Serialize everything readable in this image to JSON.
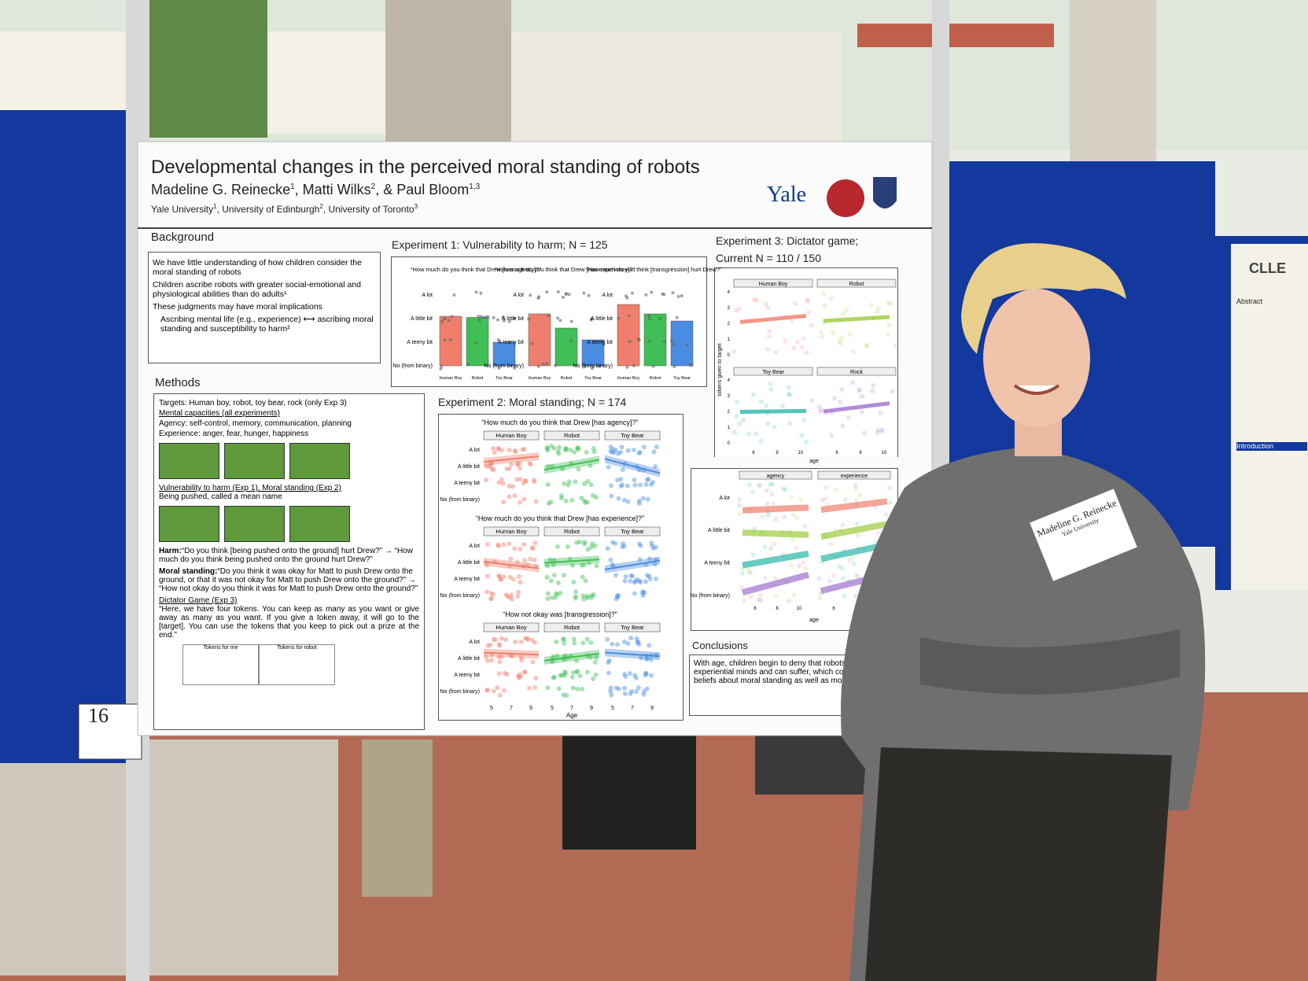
{
  "poster": {
    "title": "Developmental changes in the perceived moral standing of robots",
    "authors": [
      {
        "name": "Madeline G. Reinecke",
        "sup": "1"
      },
      {
        "name": ", Matti Wilks",
        "sup": "2"
      },
      {
        "name": ", & Paul Bloom",
        "sup": "1,3"
      }
    ],
    "affiliations": [
      {
        "name": "Yale University",
        "sup": "1"
      },
      {
        "name": ", University of Edinburgh",
        "sup": "2"
      },
      {
        "name": ", University of Toronto",
        "sup": "3"
      }
    ],
    "logo": "Yale",
    "background": {
      "heading": "Background",
      "items": [
        "We have little understanding of how children consider the moral standing of robots",
        "Children ascribe robots with greater social-emotional and physiological abilities than do adults¹",
        "These judgments may have moral implications",
        "Ascribing mental life (e.g., experience) ⟷ ascribing moral standing and susceptibility to harm²"
      ]
    },
    "methods": {
      "heading": "Methods",
      "lines": [
        "Targets: Human boy, robot, toy bear, rock (only Exp 3)",
        "Mental capacities (all experiments)",
        "Agency: self-control, memory, communication, planning",
        "Experience: anger, fear, hunger, happiness"
      ],
      "sub": "Vulnerability to harm (Exp 1), Moral standing (Exp 2)",
      "sub_line": "Being pushed, called a mean name",
      "harm_label": "Harm:",
      "harm": "“Do you think [being pushed onto the ground] hurt Drew?” → “How much do you think being pushed onto the ground hurt Drew?”",
      "moral_label": "Moral standing:",
      "moral": "“Do you think it was okay for Matt to push Drew onto the ground, or that it was not okay for Matt to push Drew onto the ground?” → “How not okay do you think it was for Matt to push Drew onto the ground?”",
      "dictator": "Dictator Game (Exp 3)",
      "dictator_text": "“Here, we have four tokens. You can keep as many as you want or give away as many as you want. If you give a token away, it will go to the [target]. You can use the tokens that you keep to pick out a prize at the end.”",
      "table": [
        "Tokens for me",
        "Tokens for robot"
      ]
    },
    "levels": [
      "A lot",
      "A little bit",
      "A teeny bit",
      "No (from binary)"
    ],
    "groups": [
      "Human Boy",
      "Robot",
      "Toy Bear"
    ],
    "colors": [
      "#ef7f6c",
      "#3fbf55",
      "#4a8de0"
    ],
    "exp1": {
      "heading": "Experiment 1: Vulnerability to harm; N = 125",
      "ylim": [
        0,
        3
      ],
      "panels": [
        {
          "question": "“How much do you think that Drew [has agency]?”",
          "values": [
            2.1,
            2.05,
            1.0
          ]
        },
        {
          "question": "“How much do you think that Drew [has experience]?”",
          "values": [
            2.2,
            1.6,
            1.1
          ]
        },
        {
          "question": "“How much do you think [transgression] hurt Drew?”",
          "values": [
            2.6,
            2.2,
            1.9
          ]
        }
      ]
    },
    "exp2": {
      "heading": "Experiment 2: Moral standing; N = 174",
      "questions": [
        "“How much do you think that Drew [has agency]?”",
        "“How much do you think that Drew [has experience]?”",
        "“How not okay was [transgression]?”"
      ],
      "xticks": [
        5,
        7,
        9
      ],
      "xlabel": "Age"
    },
    "exp3": {
      "heading": "Experiment 3: Dictator game;",
      "current": "Current N = 110 / 150",
      "facets": [
        "Human Boy",
        "Robot",
        "Toy Bear",
        "Rock"
      ],
      "ylabel": "tokens given to target",
      "yticks": [
        0,
        1,
        2,
        3,
        4
      ],
      "xticks": [
        6,
        8,
        10
      ],
      "xlabel": "age",
      "lower_facets": [
        "agency",
        "experience"
      ]
    },
    "conclusions": {
      "heading": "Conclusions",
      "text": "With age, children begin to deny that robots have experiential minds and can suffer, which correlates with beliefs about moral standing as well as moral behavior"
    }
  },
  "board_number": "16",
  "name_tag": {
    "name": "Madeline G. Reinecke",
    "affiliation": "Yale University"
  },
  "side_poster": {
    "brand": "CLLE",
    "sections": [
      "Abstract",
      "Introduction"
    ]
  }
}
